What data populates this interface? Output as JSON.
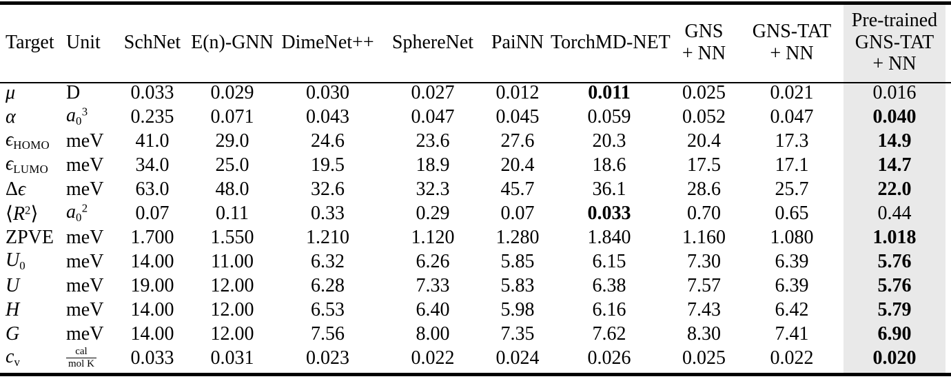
{
  "meta": {
    "highlight_color": "#e9e9e9",
    "text_color": "#000000",
    "background_color": "#ffffff"
  },
  "table": {
    "columns": [
      {
        "key": "target",
        "label": "Target",
        "align": "left"
      },
      {
        "key": "unit",
        "label": "Unit",
        "align": "left"
      },
      {
        "key": "schnet",
        "label": "SchNet"
      },
      {
        "key": "en-gnn",
        "label": "E(n)-GNN"
      },
      {
        "key": "dimenet-pp",
        "label": "DimeNet++"
      },
      {
        "key": "spherenet",
        "label": "SphereNet"
      },
      {
        "key": "painn",
        "label": "PaiNN"
      },
      {
        "key": "torchmd-net",
        "label": "TorchMD-NET"
      },
      {
        "key": "gns-nn",
        "label": "GNS\n+ NN"
      },
      {
        "key": "gns-tat-nn",
        "label": "GNS-TAT\n+ NN"
      },
      {
        "key": "pretrained-gns-tat-nn",
        "label": "Pre-trained\nGNS-TAT\n+ NN",
        "highlight": true
      }
    ],
    "rows": [
      {
        "name": "mu",
        "target": {
          "seg": [
            {
              "t": "μ",
              "s": "i"
            }
          ]
        },
        "unit": {
          "seg": [
            {
              "t": "D"
            }
          ]
        },
        "values": [
          "0.033",
          "0.029",
          "0.030",
          "0.027",
          "0.012",
          {
            "v": "0.011",
            "b": true
          },
          "0.025",
          "0.021",
          "0.016"
        ]
      },
      {
        "name": "alpha",
        "target": {
          "seg": [
            {
              "t": "α",
              "s": "i"
            }
          ]
        },
        "unit": {
          "seg": [
            {
              "t": "a",
              "s": "i"
            },
            {
              "t": "0",
              "s": "sub"
            },
            {
              "t": "3",
              "s": "sup"
            }
          ]
        },
        "values": [
          "0.235",
          "0.071",
          "0.043",
          "0.047",
          "0.045",
          "0.059",
          "0.052",
          "0.047",
          {
            "v": "0.040",
            "b": true
          }
        ]
      },
      {
        "name": "eps-homo",
        "target": {
          "seg": [
            {
              "t": "ϵ",
              "s": "i"
            },
            {
              "t": "HOMO",
              "s": "sub"
            }
          ]
        },
        "unit": {
          "seg": [
            {
              "t": "meV"
            }
          ]
        },
        "values": [
          "41.0",
          "29.0",
          "24.6",
          "23.6",
          "27.6",
          "20.3",
          "20.4",
          "17.3",
          {
            "v": "14.9",
            "b": true
          }
        ]
      },
      {
        "name": "eps-lumo",
        "target": {
          "seg": [
            {
              "t": "ϵ",
              "s": "i"
            },
            {
              "t": "LUMO",
              "s": "sub"
            }
          ]
        },
        "unit": {
          "seg": [
            {
              "t": "meV"
            }
          ]
        },
        "values": [
          "34.0",
          "25.0",
          "19.5",
          "18.9",
          "20.4",
          "18.6",
          "17.5",
          "17.1",
          {
            "v": "14.7",
            "b": true
          }
        ]
      },
      {
        "name": "delta-eps",
        "target": {
          "seg": [
            {
              "t": "Δ"
            },
            {
              "t": "ϵ",
              "s": "i"
            }
          ]
        },
        "unit": {
          "seg": [
            {
              "t": "meV"
            }
          ]
        },
        "values": [
          "63.0",
          "48.0",
          "32.6",
          "32.3",
          "45.7",
          "36.1",
          "28.6",
          "25.7",
          {
            "v": "22.0",
            "b": true
          }
        ]
      },
      {
        "name": "r-squared",
        "target": {
          "seg": [
            {
              "t": "⟨"
            },
            {
              "t": "R",
              "s": "i"
            },
            {
              "t": "2",
              "s": "sup"
            },
            {
              "t": "⟩"
            }
          ]
        },
        "unit": {
          "seg": [
            {
              "t": "a",
              "s": "i"
            },
            {
              "t": "0",
              "s": "sub"
            },
            {
              "t": "2",
              "s": "sup"
            }
          ]
        },
        "values": [
          "0.07",
          "0.11",
          "0.33",
          "0.29",
          "0.07",
          {
            "v": "0.033",
            "b": true
          },
          "0.70",
          "0.65",
          "0.44"
        ]
      },
      {
        "name": "zpve",
        "target": {
          "seg": [
            {
              "t": "ZPVE"
            }
          ]
        },
        "unit": {
          "seg": [
            {
              "t": "meV"
            }
          ]
        },
        "values": [
          "1.700",
          "1.550",
          "1.210",
          "1.120",
          "1.280",
          "1.840",
          "1.160",
          "1.080",
          {
            "v": "1.018",
            "b": true
          }
        ]
      },
      {
        "name": "u0",
        "target": {
          "seg": [
            {
              "t": "U",
              "s": "i"
            },
            {
              "t": "0",
              "s": "sub"
            }
          ]
        },
        "unit": {
          "seg": [
            {
              "t": "meV"
            }
          ]
        },
        "values": [
          "14.00",
          "11.00",
          "6.32",
          "6.26",
          "5.85",
          "6.15",
          "7.30",
          "6.39",
          {
            "v": "5.76",
            "b": true
          }
        ]
      },
      {
        "name": "u",
        "target": {
          "seg": [
            {
              "t": "U",
              "s": "i"
            }
          ]
        },
        "unit": {
          "seg": [
            {
              "t": "meV"
            }
          ]
        },
        "values": [
          "19.00",
          "12.00",
          "6.28",
          "7.33",
          "5.83",
          "6.38",
          "7.57",
          "6.39",
          {
            "v": "5.76",
            "b": true
          }
        ]
      },
      {
        "name": "h",
        "target": {
          "seg": [
            {
              "t": "H",
              "s": "i"
            }
          ]
        },
        "unit": {
          "seg": [
            {
              "t": "meV"
            }
          ]
        },
        "values": [
          "14.00",
          "12.00",
          "6.53",
          "6.40",
          "5.98",
          "6.16",
          "7.43",
          "6.42",
          {
            "v": "5.79",
            "b": true
          }
        ]
      },
      {
        "name": "g",
        "target": {
          "seg": [
            {
              "t": "G",
              "s": "i"
            }
          ]
        },
        "unit": {
          "seg": [
            {
              "t": "meV"
            }
          ]
        },
        "values": [
          "14.00",
          "12.00",
          "7.56",
          "8.00",
          "7.35",
          "7.62",
          "8.30",
          "7.41",
          {
            "v": "6.90",
            "b": true
          }
        ]
      },
      {
        "name": "cv",
        "target": {
          "seg": [
            {
              "t": "c",
              "s": "i"
            },
            {
              "t": "v",
              "s": "sub"
            }
          ]
        },
        "unit": {
          "frac": [
            "cal",
            "mol K"
          ]
        },
        "values": [
          "0.033",
          "0.031",
          "0.023",
          "0.022",
          "0.024",
          "0.026",
          "0.025",
          "0.022",
          {
            "v": "0.020",
            "b": true
          }
        ]
      }
    ]
  }
}
